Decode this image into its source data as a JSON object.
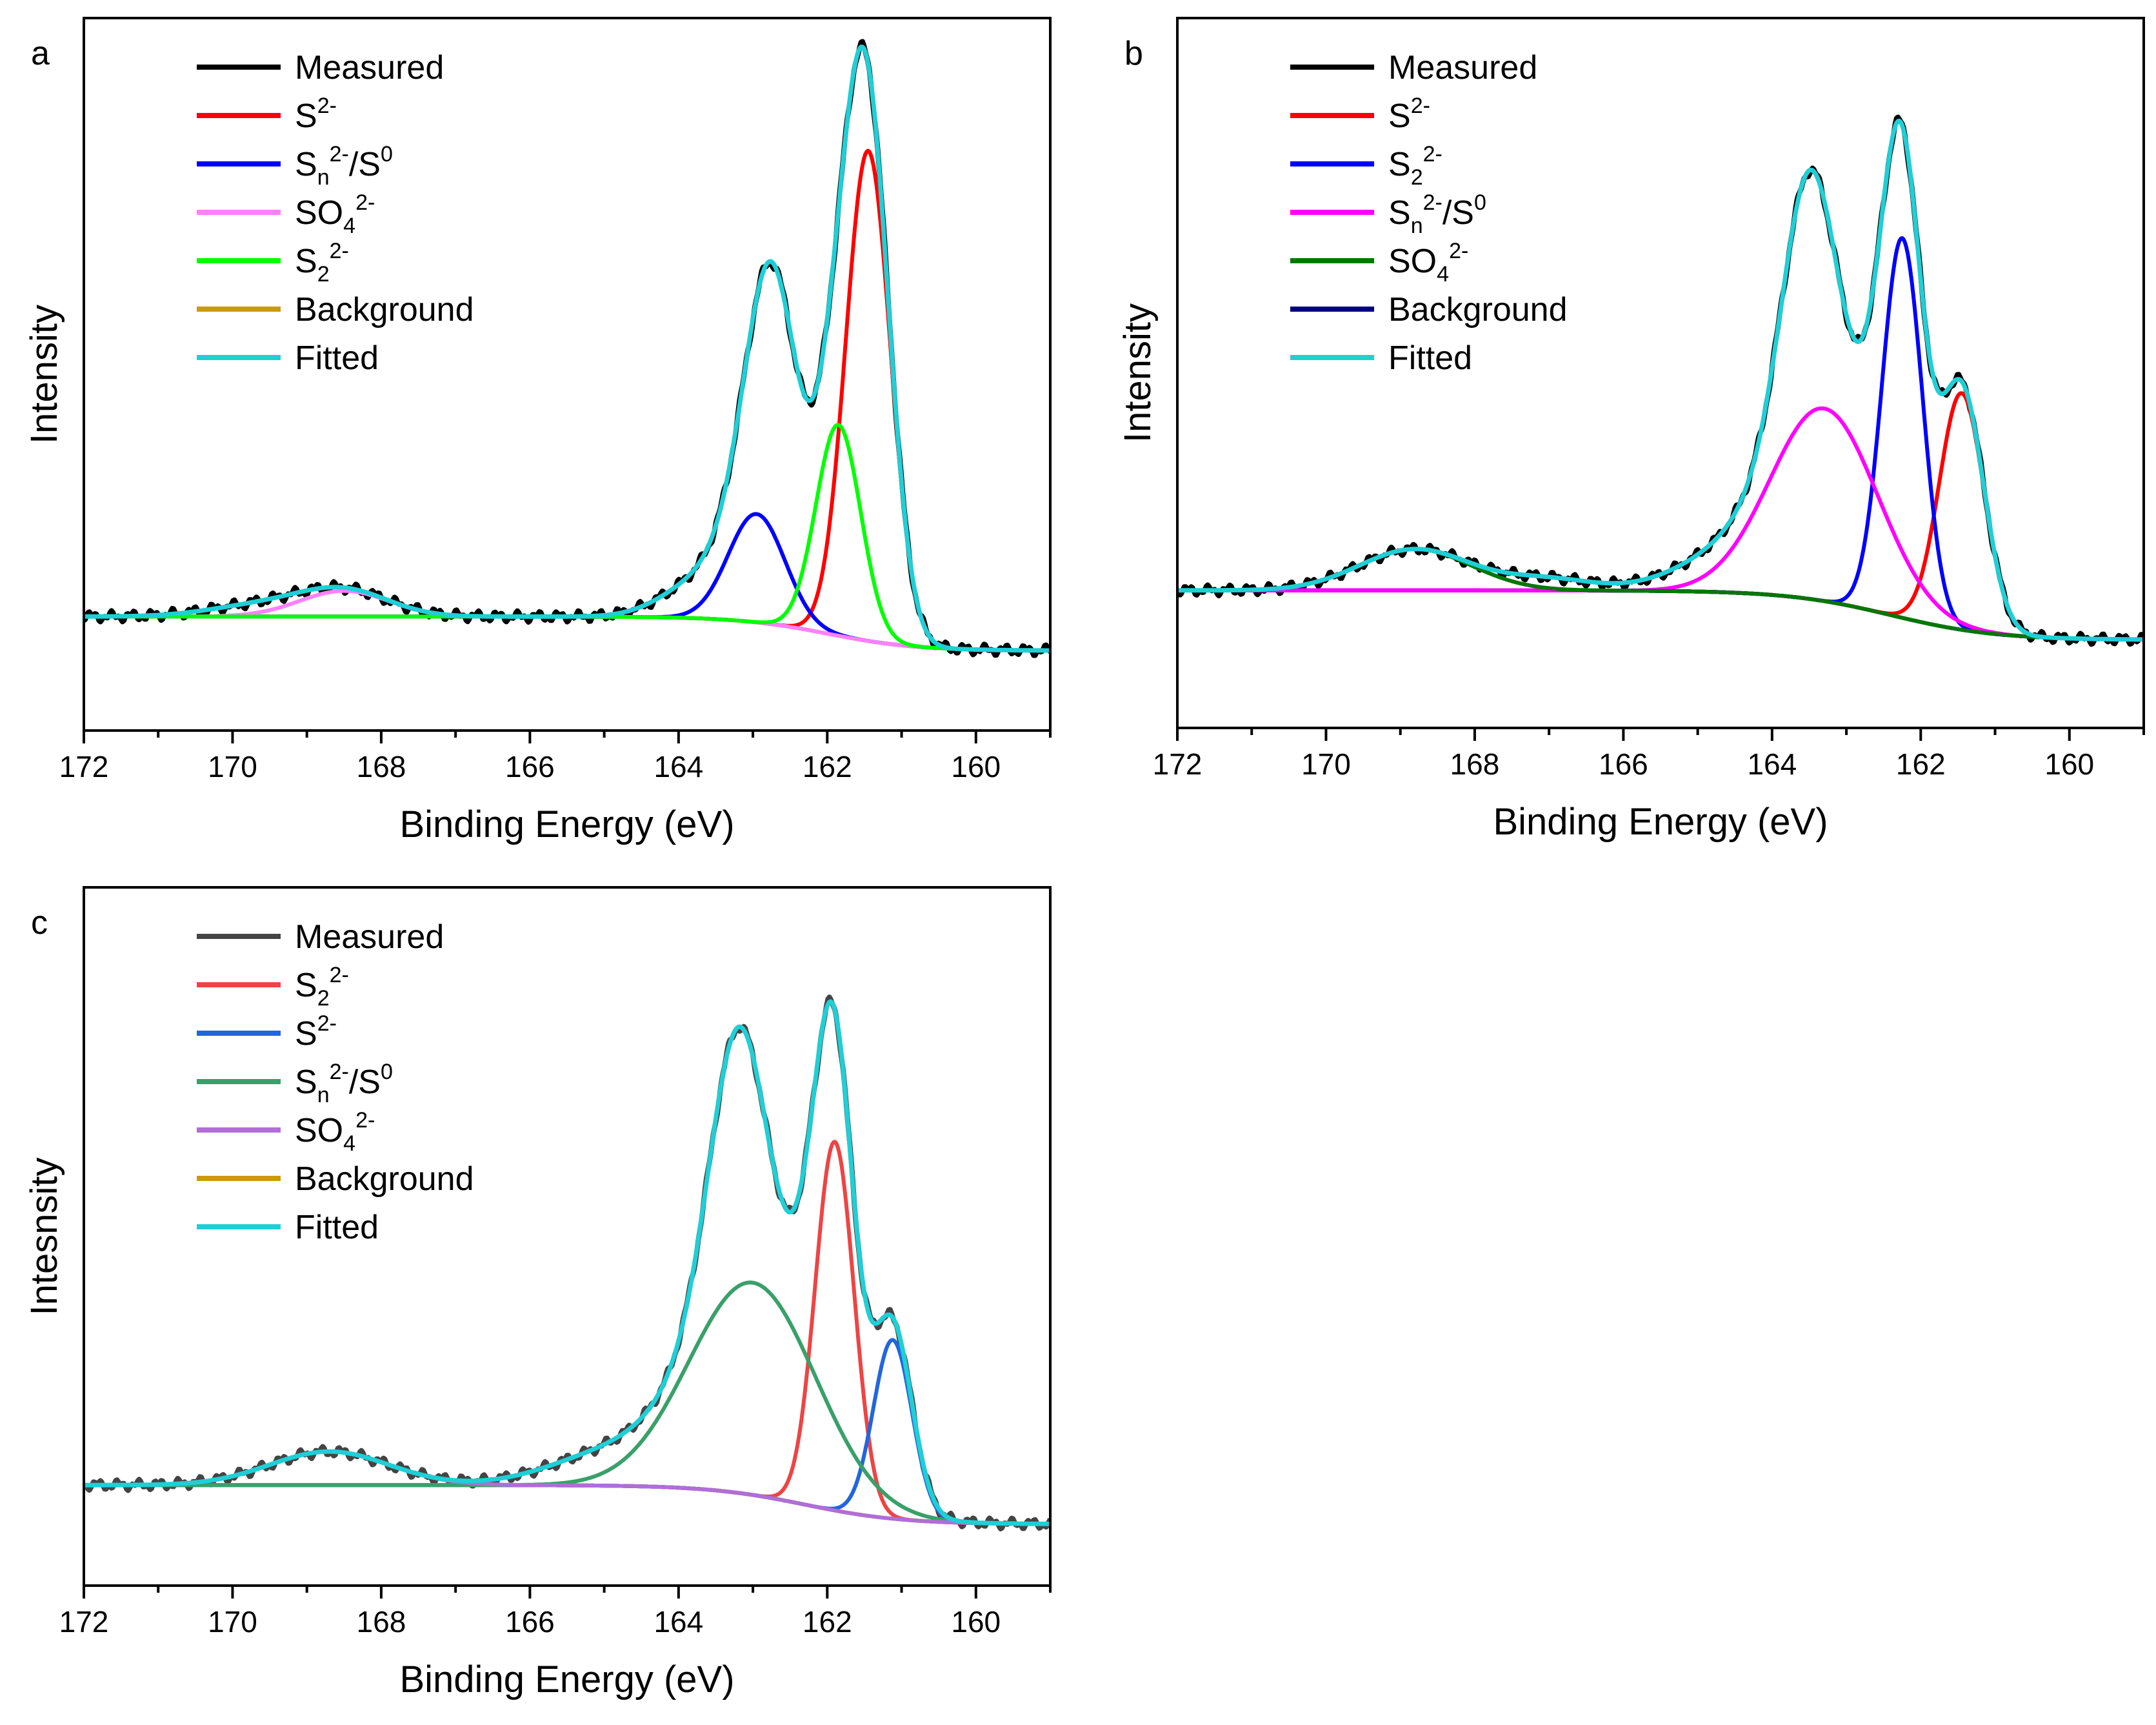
{
  "chart_data": [
    {
      "type": "line",
      "panel_label": "a",
      "xlabel": "Binding Energy (eV)",
      "ylabel": "Intensity",
      "xlim": [
        172,
        159
      ],
      "ylim": [
        -0.2,
        1.05
      ],
      "xticks": [
        172,
        170,
        168,
        166,
        164,
        162,
        160
      ],
      "legend": [
        {
          "main": "Measured",
          "color": "#000000"
        },
        {
          "main": "S",
          "sup": "2-",
          "color": "#ff0000"
        },
        {
          "main": "S",
          "sub": "n",
          "sup": "2-",
          "tail": "/S",
          "tailsup": "0",
          "color": "#0000ff"
        },
        {
          "main": "SO",
          "sub": "4",
          "sup": "2-",
          "color": "#ff80ff"
        },
        {
          "main": "S",
          "sub": "2",
          "sup": "2-",
          "color": "#00ff00"
        },
        {
          "main": "Background",
          "color": "#c99a0b"
        },
        {
          "main": "Fitted",
          "color": "#1fcfd6"
        }
      ],
      "background": {
        "left": 0.0,
        "right": -0.06,
        "center": 162.0,
        "width": 0.6
      },
      "components": [
        {
          "name": "S2-",
          "color": "#ff0000",
          "center": 161.45,
          "height": 0.86,
          "sigma": 0.3
        },
        {
          "name": "Sn2-/S0",
          "color": "#0000ff",
          "center": 162.95,
          "height": 0.19,
          "sigma": 0.38
        },
        {
          "name": "SO42-",
          "color": "#ff80ff",
          "center": 168.5,
          "height": 0.045,
          "sigma": 0.6
        },
        {
          "name": "S22-",
          "color": "#00ff00",
          "center": 161.85,
          "height": 0.37,
          "sigma": 0.3
        }
      ],
      "extra": [
        {
          "center": 162.7,
          "height": 0.45,
          "sigma": 0.34
        },
        {
          "center": 163.6,
          "height": 0.07,
          "sigma": 0.55
        },
        {
          "center": 169.6,
          "height": 0.02,
          "sigma": 0.7
        }
      ]
    },
    {
      "type": "line",
      "panel_label": "b",
      "xlabel": "Binding Energy (eV)",
      "ylabel": "Intensity",
      "xlim": [
        172,
        159
      ],
      "ylim": [
        -0.25,
        1.04
      ],
      "xticks": [
        172,
        170,
        168,
        166,
        164,
        162,
        160
      ],
      "legend": [
        {
          "main": "Measured",
          "color": "#000000"
        },
        {
          "main": "S",
          "sup": "2-",
          "color": "#ff0000"
        },
        {
          "main": "S",
          "sub": "2",
          "sup": "2-",
          "color": "#0000ff"
        },
        {
          "main": "S",
          "sub": "n",
          "sup": "2-",
          "tail": "/S",
          "tailsup": "0",
          "color": "#ff00ff"
        },
        {
          "main": "SO",
          "sub": "4",
          "sup": "2-",
          "color": "#007700"
        },
        {
          "main": "Background",
          "color": "#000080"
        },
        {
          "main": "Fitted",
          "color": "#1fcfd6"
        }
      ],
      "background": {
        "left": 0.0,
        "right": -0.09,
        "center": 162.4,
        "width": 0.7
      },
      "components": [
        {
          "name": "S2-",
          "color": "#ff0000",
          "center": 161.45,
          "height": 0.43,
          "sigma": 0.3
        },
        {
          "name": "S22-",
          "color": "#0000ff",
          "center": 162.25,
          "height": 0.69,
          "sigma": 0.27
        },
        {
          "name": "Sn2-/S0",
          "color": "#ff00ff",
          "center": 163.3,
          "height": 0.35,
          "sigma": 0.72
        },
        {
          "name": "SO42-",
          "color": "#007700",
          "center": 168.8,
          "height": 0.075,
          "sigma": 0.75
        }
      ],
      "extra": [
        {
          "center": 163.5,
          "height": 0.43,
          "sigma": 0.36
        },
        {
          "center": 162.5,
          "height": 0.1,
          "sigma": 0.3
        },
        {
          "center": 164.7,
          "height": 0.05,
          "sigma": 0.7
        },
        {
          "center": 167.0,
          "height": 0.02,
          "sigma": 0.6
        }
      ]
    },
    {
      "type": "line",
      "panel_label": "c",
      "xlabel": "Binding Energy (eV)",
      "ylabel": "Intesnsity",
      "xlim": [
        172,
        159
      ],
      "ylim": [
        -0.18,
        1.07
      ],
      "xticks": [
        172,
        170,
        168,
        166,
        164,
        162,
        160
      ],
      "legend": [
        {
          "main": "Measured",
          "color": "#444444"
        },
        {
          "main": "S",
          "sub": "2",
          "sup": "2-",
          "color": "#ee4444"
        },
        {
          "main": "S",
          "sup": "2-",
          "color": "#2266dd"
        },
        {
          "main": "S",
          "sub": "n",
          "sup": "2-",
          "tail": "/S",
          "tailsup": "0",
          "color": "#3aa06a"
        },
        {
          "main": "SO",
          "sub": "4",
          "sup": "2-",
          "color": "#b06ed6"
        },
        {
          "main": "Background",
          "color": "#c99a0b"
        },
        {
          "main": "Fitted",
          "color": "#1fcfd6"
        }
      ],
      "background": {
        "left": 0.0,
        "right": -0.07,
        "center": 162.3,
        "width": 0.65
      },
      "components": [
        {
          "name": "S22-",
          "color": "#ee4444",
          "center": 161.9,
          "height": 0.66,
          "sigma": 0.26
        },
        {
          "name": "S2-",
          "color": "#2266dd",
          "center": 161.12,
          "height": 0.32,
          "sigma": 0.26
        },
        {
          "name": "Sn2-/S0",
          "color": "#3aa06a",
          "center": 163.0,
          "height": 0.38,
          "sigma": 0.85
        },
        {
          "name": "SO42-",
          "color": "#b06ed6",
          "center": 168.7,
          "height": 0.06,
          "sigma": 0.8
        }
      ],
      "extra": [
        {
          "center": 163.2,
          "height": 0.46,
          "sigma": 0.38
        },
        {
          "center": 162.2,
          "height": 0.12,
          "sigma": 0.28
        },
        {
          "center": 165.0,
          "height": 0.05,
          "sigma": 0.8
        }
      ]
    }
  ]
}
